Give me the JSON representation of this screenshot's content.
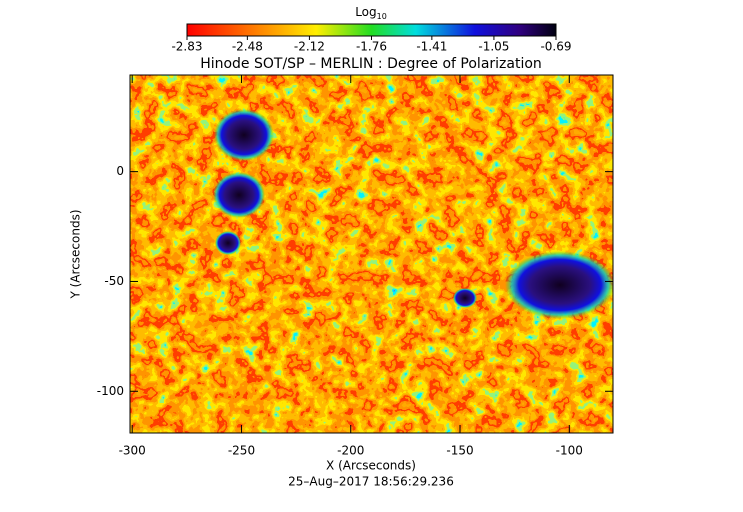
{
  "chart_data": {
    "type": "heatmap",
    "title": "Hinode SOT/SP – MERLIN : Degree of Polarization",
    "colorbar_label": "Log",
    "colorbar_label_sub": "10",
    "clim": [
      -2.83,
      -0.69
    ],
    "cticks": [
      -2.83,
      -2.48,
      -2.12,
      -1.76,
      -1.41,
      -1.05,
      -0.69
    ],
    "xlabel": "X (Arcseconds)",
    "ylabel": "Y (Arcseconds)",
    "xlim": [
      -301,
      -80
    ],
    "xticks": [
      -300,
      -250,
      -200,
      -150,
      -100
    ],
    "ylim": [
      -119,
      44
    ],
    "yticks": [
      -100,
      -50,
      0
    ],
    "footer": "25–Aug–2017 18:56:29.236"
  }
}
